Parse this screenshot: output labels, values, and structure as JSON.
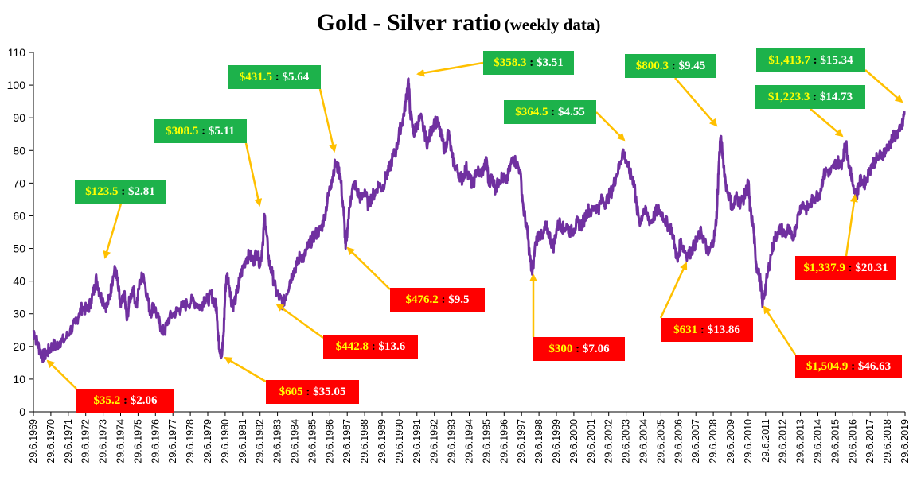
{
  "title": {
    "main": "Gold - Silver ratio",
    "sub": "(weekly data)"
  },
  "chart_data": {
    "type": "line",
    "title": "Gold - Silver ratio (weekly data)",
    "ylim": [
      0,
      110
    ],
    "yticks": [
      0,
      10,
      20,
      30,
      40,
      50,
      60,
      70,
      80,
      90,
      100,
      110
    ],
    "xlim": [
      1969.49,
      2019.49
    ],
    "x_tick_labels": [
      "29.6.1969",
      "29.6.1970",
      "29.6.1971",
      "29.6.1972",
      "29.6.1973",
      "29.6.1974",
      "29.6.1975",
      "29.6.1976",
      "29.6.1977",
      "29.6.1978",
      "29.6.1979",
      "29.6.1980",
      "29.6.1981",
      "29.6.1982",
      "29.6.1983",
      "29.6.1984",
      "29.6.1985",
      "29.6.1986",
      "29.6.1987",
      "29.6.1988",
      "29.6.1989",
      "29.6.1990",
      "29.6.1991",
      "29.6.1992",
      "29.6.1993",
      "29.6.1994",
      "29.6.1995",
      "29.6.1996",
      "29.6.1997",
      "29.6.1998",
      "29.6.1999",
      "29.6.2000",
      "29.6.2001",
      "29.6.2002",
      "29.6.2003",
      "29.6.2004",
      "29.6.2005",
      "29.6.2006",
      "29.6.2007",
      "29.6.2008",
      "29.6.2009",
      "29.6.2010",
      "29.6.2011",
      "29.6.2012",
      "29.6.2013",
      "29.6.2014",
      "29.6.2015",
      "29.6.2016",
      "29.6.2017",
      "29.6.2018",
      "29.6.2019"
    ],
    "grid": false,
    "line_color": "#7030a0",
    "series": [
      {
        "values": [
          [
            1969.5,
            25
          ],
          [
            1969.65,
            22
          ],
          [
            1969.85,
            19
          ],
          [
            1970.0,
            17
          ],
          [
            1970.2,
            17.5
          ],
          [
            1970.4,
            19
          ],
          [
            1970.6,
            20.5
          ],
          [
            1970.8,
            20
          ],
          [
            1971.0,
            21.5
          ],
          [
            1971.3,
            22
          ],
          [
            1971.6,
            25
          ],
          [
            1971.9,
            27
          ],
          [
            1972.1,
            30
          ],
          [
            1972.3,
            32
          ],
          [
            1972.6,
            31
          ],
          [
            1972.8,
            34
          ],
          [
            1973.0,
            38
          ],
          [
            1973.1,
            41
          ],
          [
            1973.3,
            36
          ],
          [
            1973.5,
            34
          ],
          [
            1973.7,
            32
          ],
          [
            1973.9,
            36
          ],
          [
            1974.0,
            40
          ],
          [
            1974.2,
            44
          ],
          [
            1974.35,
            38
          ],
          [
            1974.5,
            32
          ],
          [
            1974.7,
            36
          ],
          [
            1974.85,
            28
          ],
          [
            1975.0,
            34
          ],
          [
            1975.2,
            38
          ],
          [
            1975.4,
            32
          ],
          [
            1975.6,
            40
          ],
          [
            1975.8,
            42
          ],
          [
            1976.0,
            36
          ],
          [
            1976.2,
            30
          ],
          [
            1976.4,
            33
          ],
          [
            1976.6,
            29
          ],
          [
            1976.8,
            26
          ],
          [
            1977.0,
            24
          ],
          [
            1977.2,
            28
          ],
          [
            1977.5,
            30
          ],
          [
            1977.8,
            31
          ],
          [
            1978.0,
            32
          ],
          [
            1978.3,
            33
          ],
          [
            1978.6,
            34
          ],
          [
            1978.9,
            33
          ],
          [
            1979.1,
            32
          ],
          [
            1979.3,
            35
          ],
          [
            1979.5,
            34
          ],
          [
            1979.7,
            36
          ],
          [
            1979.9,
            33
          ],
          [
            1980.0,
            32
          ],
          [
            1980.1,
            22
          ],
          [
            1980.2,
            19
          ],
          [
            1980.3,
            17
          ],
          [
            1980.4,
            24
          ],
          [
            1980.5,
            38
          ],
          [
            1980.6,
            42
          ],
          [
            1980.75,
            38
          ],
          [
            1980.9,
            32
          ],
          [
            1981.1,
            35
          ],
          [
            1981.3,
            40
          ],
          [
            1981.5,
            44
          ],
          [
            1981.7,
            47
          ],
          [
            1981.9,
            48
          ],
          [
            1982.1,
            46
          ],
          [
            1982.3,
            49
          ],
          [
            1982.5,
            45
          ],
          [
            1982.65,
            52
          ],
          [
            1982.75,
            60
          ],
          [
            1982.85,
            55
          ],
          [
            1983.0,
            46
          ],
          [
            1983.2,
            42
          ],
          [
            1983.4,
            37
          ],
          [
            1983.6,
            35
          ],
          [
            1983.8,
            33
          ],
          [
            1984.0,
            36
          ],
          [
            1984.2,
            40
          ],
          [
            1984.4,
            43
          ],
          [
            1984.6,
            45
          ],
          [
            1984.8,
            48
          ],
          [
            1985.0,
            47
          ],
          [
            1985.2,
            50
          ],
          [
            1985.4,
            52
          ],
          [
            1985.6,
            54
          ],
          [
            1985.8,
            55
          ],
          [
            1986.0,
            56
          ],
          [
            1986.2,
            60
          ],
          [
            1986.4,
            66
          ],
          [
            1986.6,
            71
          ],
          [
            1986.8,
            76
          ],
          [
            1987.0,
            74
          ],
          [
            1987.1,
            72
          ],
          [
            1987.3,
            60
          ],
          [
            1987.4,
            50
          ],
          [
            1987.5,
            56
          ],
          [
            1987.7,
            66
          ],
          [
            1987.9,
            70
          ],
          [
            1988.1,
            67
          ],
          [
            1988.3,
            65
          ],
          [
            1988.5,
            68
          ],
          [
            1988.7,
            63
          ],
          [
            1988.9,
            66
          ],
          [
            1989.1,
            67
          ],
          [
            1989.3,
            70
          ],
          [
            1989.5,
            68
          ],
          [
            1989.7,
            72
          ],
          [
            1989.9,
            74
          ],
          [
            1990.1,
            78
          ],
          [
            1990.3,
            80
          ],
          [
            1990.5,
            86
          ],
          [
            1990.7,
            90
          ],
          [
            1990.85,
            95
          ],
          [
            1991.0,
            102
          ],
          [
            1991.1,
            92
          ],
          [
            1991.3,
            85
          ],
          [
            1991.5,
            88
          ],
          [
            1991.7,
            90
          ],
          [
            1991.9,
            86
          ],
          [
            1992.1,
            82
          ],
          [
            1992.3,
            86
          ],
          [
            1992.5,
            89
          ],
          [
            1992.7,
            88
          ],
          [
            1992.9,
            84
          ],
          [
            1993.1,
            80
          ],
          [
            1993.3,
            86
          ],
          [
            1993.5,
            78
          ],
          [
            1993.7,
            75
          ],
          [
            1993.9,
            73
          ],
          [
            1994.1,
            71
          ],
          [
            1994.3,
            75
          ],
          [
            1994.5,
            72
          ],
          [
            1994.7,
            69
          ],
          [
            1994.9,
            74
          ],
          [
            1995.1,
            73
          ],
          [
            1995.3,
            74
          ],
          [
            1995.5,
            77
          ],
          [
            1995.6,
            70
          ],
          [
            1995.8,
            72
          ],
          [
            1996.0,
            68
          ],
          [
            1996.2,
            71
          ],
          [
            1996.4,
            72
          ],
          [
            1996.6,
            70
          ],
          [
            1996.8,
            74
          ],
          [
            1997.0,
            78
          ],
          [
            1997.2,
            76
          ],
          [
            1997.4,
            74
          ],
          [
            1997.6,
            62
          ],
          [
            1997.8,
            56
          ],
          [
            1997.95,
            48
          ],
          [
            1998.1,
            42
          ],
          [
            1998.3,
            52
          ],
          [
            1998.5,
            55
          ],
          [
            1998.7,
            53
          ],
          [
            1998.9,
            57
          ],
          [
            1999.1,
            54
          ],
          [
            1999.3,
            50
          ],
          [
            1999.5,
            56
          ],
          [
            1999.7,
            58
          ],
          [
            1999.9,
            56
          ],
          [
            2000.1,
            57
          ],
          [
            2000.3,
            55
          ],
          [
            2000.5,
            56
          ],
          [
            2000.7,
            58
          ],
          [
            2000.9,
            57
          ],
          [
            2001.1,
            59
          ],
          [
            2001.3,
            62
          ],
          [
            2001.5,
            61
          ],
          [
            2001.7,
            63
          ],
          [
            2001.9,
            62
          ],
          [
            2002.1,
            65
          ],
          [
            2002.3,
            64
          ],
          [
            2002.5,
            66
          ],
          [
            2002.7,
            68
          ],
          [
            2002.9,
            72
          ],
          [
            2003.1,
            75
          ],
          [
            2003.3,
            80
          ],
          [
            2003.5,
            77
          ],
          [
            2003.7,
            73
          ],
          [
            2003.9,
            71
          ],
          [
            2004.0,
            68
          ],
          [
            2004.1,
            62
          ],
          [
            2004.3,
            58
          ],
          [
            2004.5,
            62
          ],
          [
            2004.7,
            60
          ],
          [
            2004.9,
            58
          ],
          [
            2005.1,
            60
          ],
          [
            2005.3,
            62
          ],
          [
            2005.5,
            61
          ],
          [
            2005.7,
            59
          ],
          [
            2005.9,
            57
          ],
          [
            2006.1,
            56
          ],
          [
            2006.3,
            50
          ],
          [
            2006.45,
            46
          ],
          [
            2006.6,
            52
          ],
          [
            2006.8,
            50
          ],
          [
            2007.0,
            48
          ],
          [
            2007.2,
            49
          ],
          [
            2007.4,
            51
          ],
          [
            2007.6,
            53
          ],
          [
            2007.8,
            55
          ],
          [
            2008.0,
            52
          ],
          [
            2008.2,
            48
          ],
          [
            2008.4,
            51
          ],
          [
            2008.6,
            55
          ],
          [
            2008.7,
            62
          ],
          [
            2008.8,
            75
          ],
          [
            2008.9,
            84
          ],
          [
            2009.0,
            80
          ],
          [
            2009.2,
            70
          ],
          [
            2009.4,
            66
          ],
          [
            2009.6,
            62
          ],
          [
            2009.8,
            66
          ],
          [
            2010.0,
            64
          ],
          [
            2010.2,
            65
          ],
          [
            2010.4,
            68
          ],
          [
            2010.5,
            70
          ],
          [
            2010.6,
            62
          ],
          [
            2010.8,
            56
          ],
          [
            2010.9,
            48
          ],
          [
            2011.0,
            44
          ],
          [
            2011.2,
            40
          ],
          [
            2011.3,
            33
          ],
          [
            2011.45,
            37
          ],
          [
            2011.6,
            42
          ],
          [
            2011.8,
            48
          ],
          [
            2012.0,
            53
          ],
          [
            2012.2,
            55
          ],
          [
            2012.4,
            56
          ],
          [
            2012.6,
            54
          ],
          [
            2012.8,
            56
          ],
          [
            2013.0,
            53
          ],
          [
            2013.2,
            56
          ],
          [
            2013.4,
            61
          ],
          [
            2013.6,
            64
          ],
          [
            2013.8,
            62
          ],
          [
            2014.0,
            63
          ],
          [
            2014.2,
            65
          ],
          [
            2014.4,
            66
          ],
          [
            2014.6,
            67
          ],
          [
            2014.8,
            72
          ],
          [
            2015.0,
            74
          ],
          [
            2015.2,
            73
          ],
          [
            2015.4,
            75
          ],
          [
            2015.6,
            77
          ],
          [
            2015.8,
            75
          ],
          [
            2016.0,
            80
          ],
          [
            2016.1,
            82
          ],
          [
            2016.2,
            78
          ],
          [
            2016.4,
            72
          ],
          [
            2016.6,
            68
          ],
          [
            2016.7,
            66
          ],
          [
            2016.85,
            70
          ],
          [
            2017.0,
            71
          ],
          [
            2017.2,
            70
          ],
          [
            2017.4,
            73
          ],
          [
            2017.6,
            76
          ],
          [
            2017.8,
            77
          ],
          [
            2018.0,
            78
          ],
          [
            2018.2,
            79
          ],
          [
            2018.4,
            80
          ],
          [
            2018.6,
            82
          ],
          [
            2018.8,
            84
          ],
          [
            2019.0,
            85
          ],
          [
            2019.2,
            86
          ],
          [
            2019.35,
            88
          ],
          [
            2019.45,
            92
          ]
        ]
      }
    ],
    "annotations": [
      {
        "color": "green",
        "gold": "$123.5",
        "silver": "$2.81"
      },
      {
        "color": "green",
        "gold": "$308.5",
        "silver": "$5.11"
      },
      {
        "color": "green",
        "gold": "$431.5",
        "silver": "$5.64"
      },
      {
        "color": "green",
        "gold": "$358.3",
        "silver": "$3.51"
      },
      {
        "color": "green",
        "gold": "$364.5",
        "silver": "$4.55"
      },
      {
        "color": "green",
        "gold": "$800.3",
        "silver": "$9.45"
      },
      {
        "color": "green",
        "gold": "$1,413.7",
        "silver": "$15.34"
      },
      {
        "color": "green",
        "gold": "$1,223.3",
        "silver": "$14.73"
      },
      {
        "color": "red",
        "gold": "$35.2",
        "silver": "$2.06"
      },
      {
        "color": "red",
        "gold": "$605",
        "silver": "$35.05"
      },
      {
        "color": "red",
        "gold": "$442.8",
        "silver": "$13.6"
      },
      {
        "color": "red",
        "gold": "$476.2",
        "silver": "$9.5"
      },
      {
        "color": "red",
        "gold": "$300",
        "silver": "$7.06"
      },
      {
        "color": "red",
        "gold": "$631",
        "silver": "$13.86"
      },
      {
        "color": "red",
        "gold": "$1,504.9",
        "silver": "$46.63"
      },
      {
        "color": "red",
        "gold": "$1,337.9",
        "silver": "$20.31"
      }
    ],
    "annotation_separator": ":",
    "annotation_colors": {
      "green": "#1db24b",
      "red": "#ff0000",
      "gold_text": "#ffff00",
      "silver_text": "#ffffff",
      "arrow": "#ffc000"
    }
  }
}
